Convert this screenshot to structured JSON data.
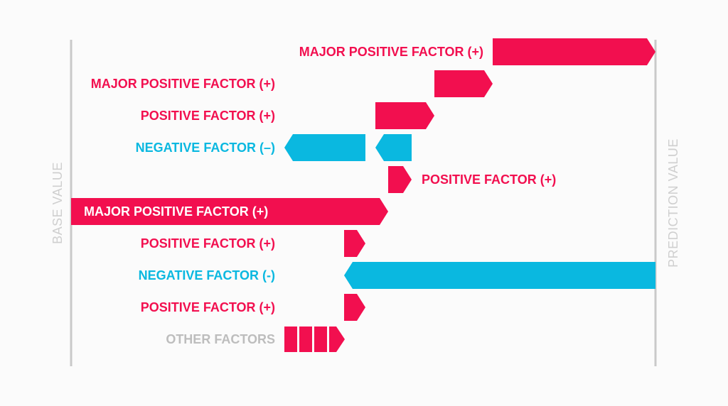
{
  "colors": {
    "positive": "#f20f4f",
    "negative": "#0ab8e0",
    "other": "#c8c8c8",
    "axis": "#c9c9c9",
    "background": "#fbfbfb"
  },
  "axes": {
    "base_label": "BASE VALUE",
    "prediction_label": "PREDICTION VALUE"
  },
  "factors": [
    {
      "label": "MAJOR POSITIVE FACTOR (+)",
      "type": "positive",
      "icon": "arrow-right"
    },
    {
      "label": "MAJOR POSITIVE FACTOR (+)",
      "type": "positive",
      "icon": "arrow-right"
    },
    {
      "label": "POSITIVE FACTOR (+)",
      "type": "positive",
      "icon": "arrow-right"
    },
    {
      "label": "NEGATIVE FACTOR (–)",
      "type": "negative",
      "icon": "arrow-left"
    },
    {
      "label": "POSITIVE FACTOR (+)",
      "type": "positive",
      "icon": "arrow-right"
    },
    {
      "label": "MAJOR POSITIVE FACTOR (+)",
      "type": "positive",
      "icon": "arrow-right"
    },
    {
      "label": "POSITIVE FACTOR (+)",
      "type": "positive",
      "icon": "arrow-right"
    },
    {
      "label": "NEGATIVE FACTOR (-)",
      "type": "negative",
      "icon": "arrow-left"
    },
    {
      "label": "POSITIVE FACTOR (+)",
      "type": "positive",
      "icon": "arrow-right"
    },
    {
      "label": "OTHER FACTORS",
      "type": "other",
      "icon": "arrow-right"
    }
  ]
}
